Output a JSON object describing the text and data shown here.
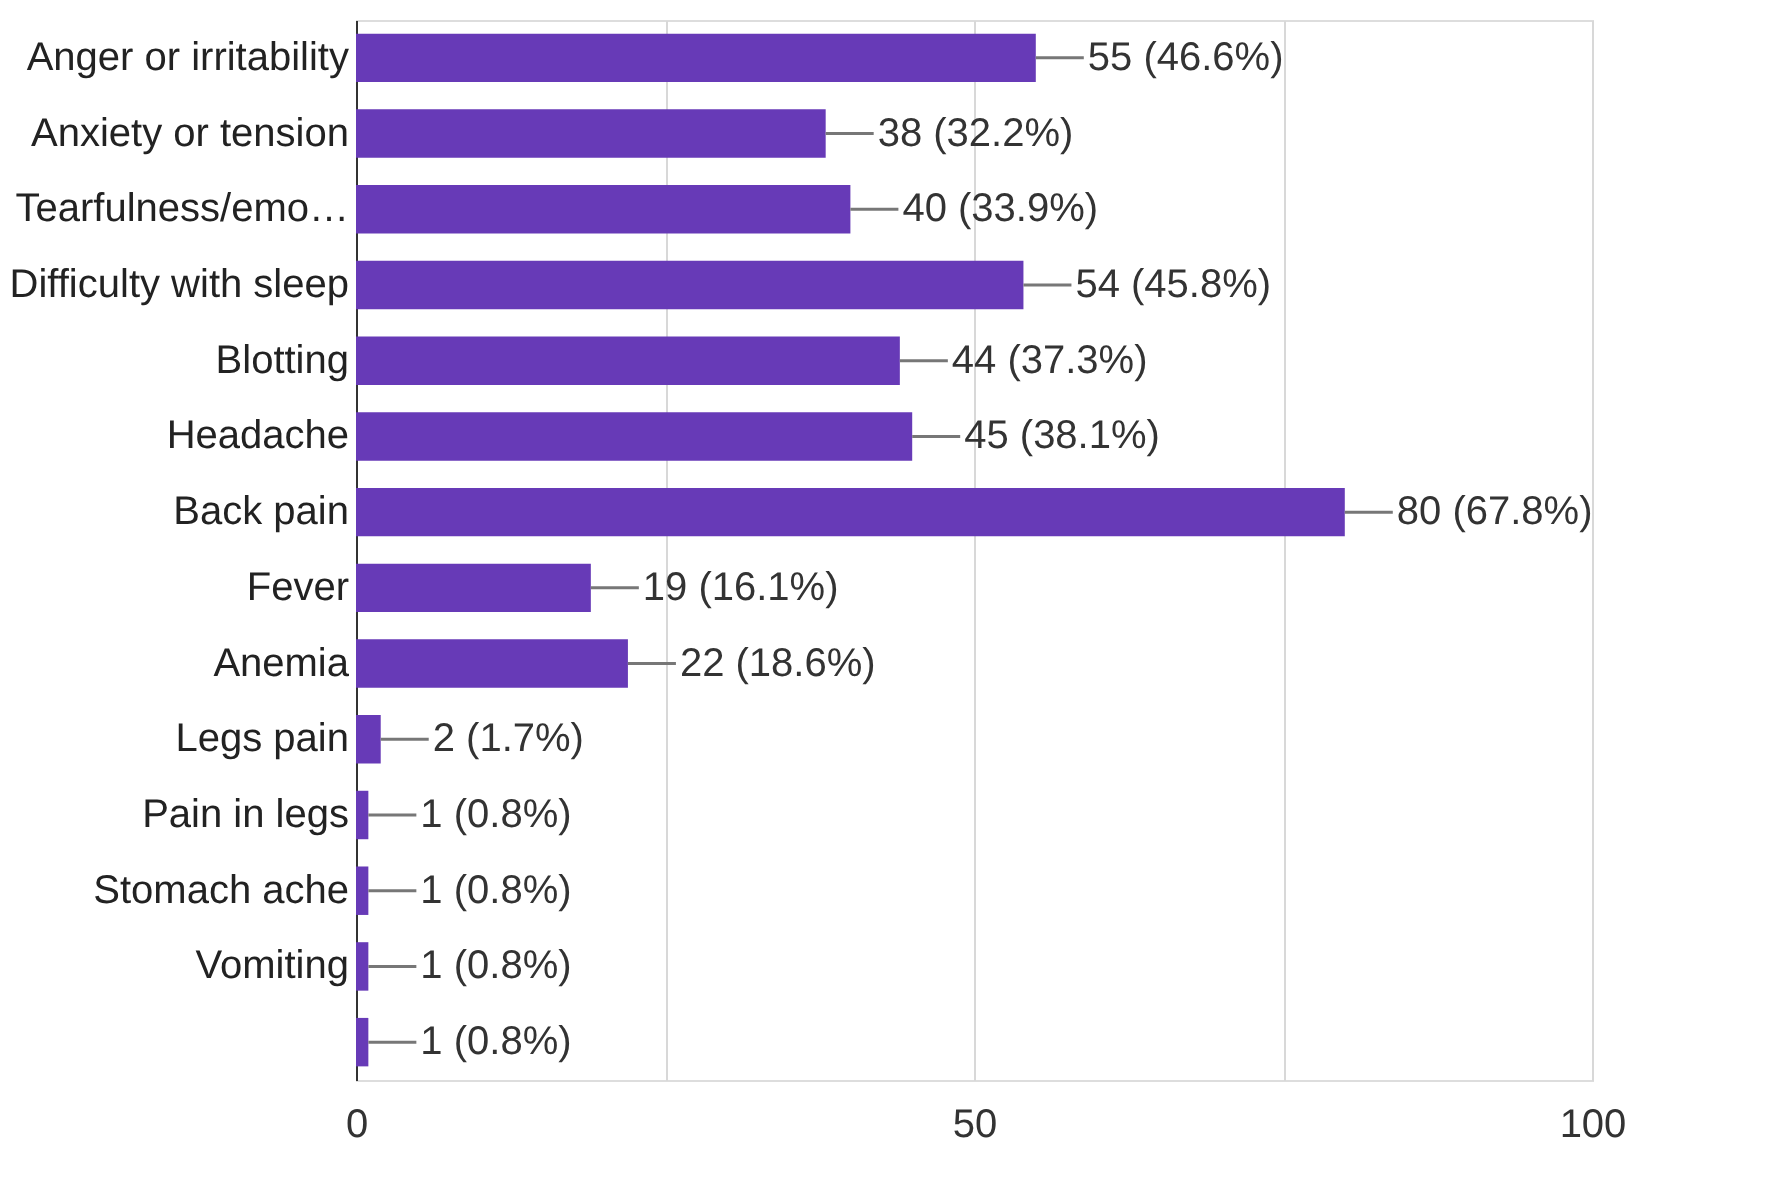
{
  "chart_data": {
    "type": "bar",
    "orientation": "horizontal",
    "categories": [
      "Anger or irritability",
      "Anxiety or tension",
      "Tearfulness/emo…",
      "Difficulty with sleep",
      "Blotting",
      "Headache",
      "Back pain",
      "Fever",
      "Anemia",
      "Legs pain",
      "Pain in legs",
      "Stomach ache",
      "Vomiting",
      null
    ],
    "values": [
      55,
      38,
      40,
      54,
      44,
      45,
      80,
      19,
      22,
      2,
      1,
      1,
      1,
      1
    ],
    "value_labels": [
      "55 (46.6%)",
      "38 (32.2%)",
      "40 (33.9%)",
      "54 (45.8%)",
      "44 (37.3%)",
      "45 (38.1%)",
      "80 (67.8%)",
      "19 (16.1%)",
      "22 (18.6%)",
      "2 (1.7%)",
      "1 (0.8%)",
      "1 (0.8%)",
      "1 (0.8%)",
      "1 (0.8%)"
    ],
    "color": "#673ab7",
    "xlim": [
      0,
      100
    ],
    "xticks": [
      0,
      {
        "value": 25,
        "label": null
      },
      50,
      {
        "value": 75,
        "label": null
      },
      100
    ],
    "grid": "x"
  }
}
